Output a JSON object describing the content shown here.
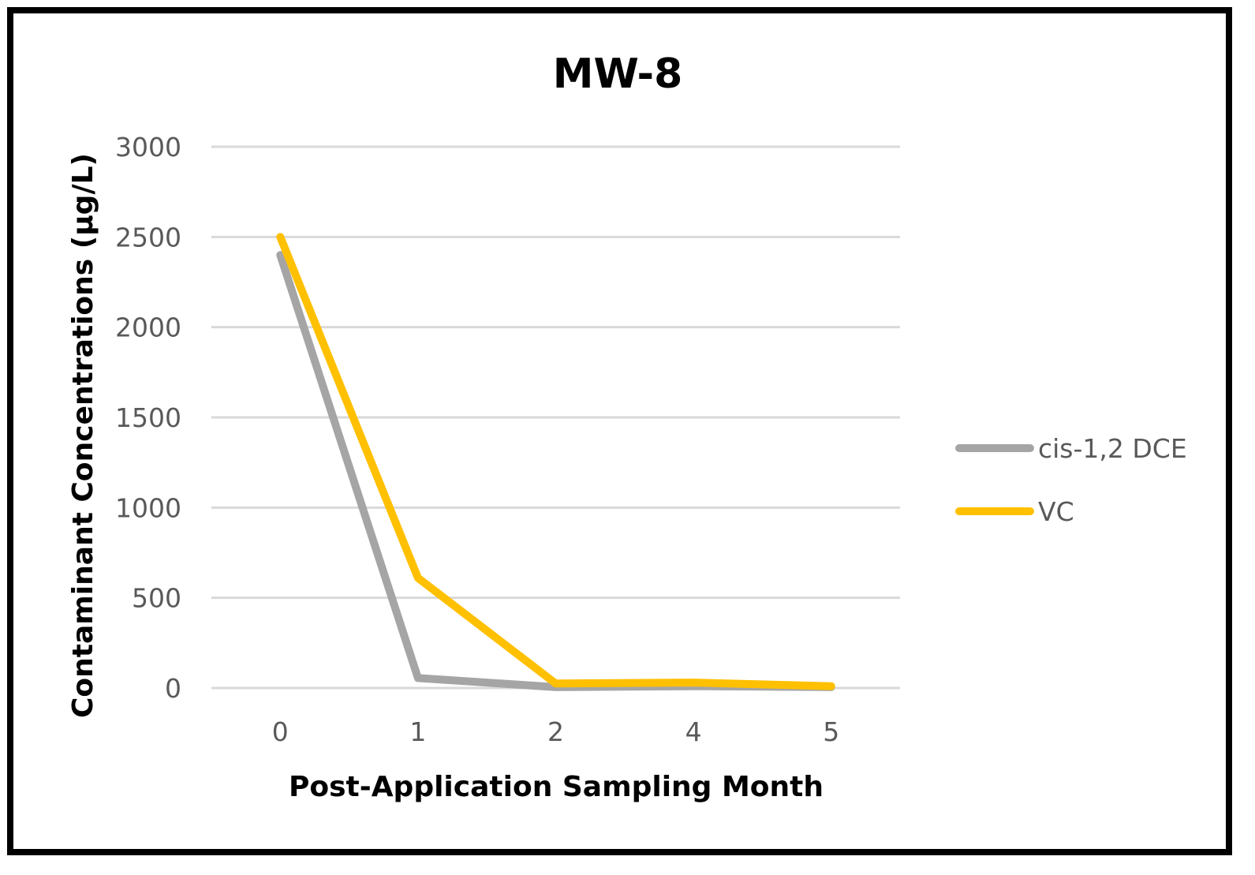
{
  "chart_data": {
    "type": "line",
    "title": "MW-8",
    "xlabel": "Post-Application Sampling Month",
    "ylabel": "Contaminant Concentrations (µg/L)",
    "categories": [
      "0",
      "1",
      "2",
      "4",
      "5"
    ],
    "ylim": [
      0,
      3000
    ],
    "yticks": [
      0,
      500,
      1000,
      1500,
      2000,
      2500,
      3000
    ],
    "grid": true,
    "legend_position": "right",
    "series": [
      {
        "name": "cis-1,2 DCE",
        "color": "#a5a5a5",
        "values": [
          2400,
          55,
          5,
          10,
          5
        ]
      },
      {
        "name": "VC",
        "color": "#ffc000",
        "values": [
          2500,
          610,
          25,
          30,
          10
        ]
      }
    ]
  }
}
